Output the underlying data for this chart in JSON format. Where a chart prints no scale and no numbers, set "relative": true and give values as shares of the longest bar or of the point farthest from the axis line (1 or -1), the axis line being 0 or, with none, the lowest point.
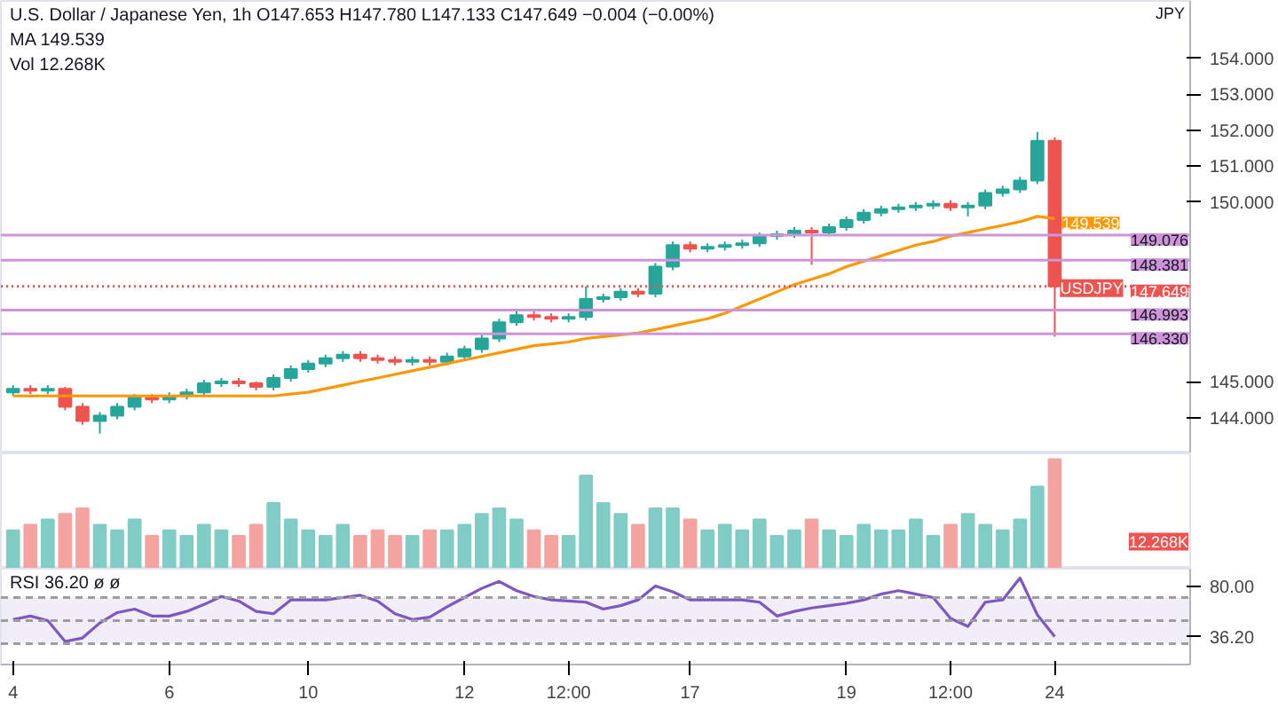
{
  "chart_data": [
    {
      "type": "candlestick",
      "title": "U.S. Dollar / Japanese Yen, 1h  O147.653 H147.780 L147.133 C147.649 −0.004 (−0.00%)",
      "ylabel": "JPY",
      "annotations": [
        "MA 149.539",
        "Vol 12.268K",
        {
          "text": "USDJPY",
          "y": 147.649
        }
      ],
      "categories": [
        null,
        null,
        null,
        null,
        null,
        null,
        null,
        null,
        null,
        null,
        null,
        null,
        null,
        null,
        null,
        null,
        null,
        null,
        null,
        null,
        null,
        null,
        null,
        null,
        null,
        null,
        null,
        null,
        null,
        null,
        null,
        null,
        null,
        null,
        null,
        null,
        null,
        null,
        null,
        null,
        null,
        null,
        null,
        null,
        null,
        null,
        null,
        null,
        null,
        null,
        null,
        null,
        null,
        null,
        null,
        null,
        null,
        null,
        null,
        null,
        null
      ],
      "ohlc": [
        [
          144.7,
          144.9,
          144.6,
          144.8
        ],
        [
          144.8,
          144.9,
          144.65,
          144.75
        ],
        [
          144.75,
          144.9,
          144.65,
          144.8
        ],
        [
          144.8,
          144.85,
          144.2,
          144.3
        ],
        [
          144.3,
          144.4,
          143.8,
          143.9
        ],
        [
          143.9,
          144.15,
          143.55,
          144.05
        ],
        [
          144.05,
          144.4,
          143.95,
          144.3
        ],
        [
          144.3,
          144.65,
          144.2,
          144.55
        ],
        [
          144.55,
          144.65,
          144.4,
          144.5
        ],
        [
          144.5,
          144.7,
          144.4,
          144.6
        ],
        [
          144.6,
          144.8,
          144.5,
          144.7
        ],
        [
          144.7,
          145.05,
          144.6,
          144.95
        ],
        [
          144.95,
          145.1,
          144.85,
          145.0
        ],
        [
          145.0,
          145.1,
          144.85,
          144.95
        ],
        [
          144.95,
          145.0,
          144.75,
          144.85
        ],
        [
          144.85,
          145.2,
          144.75,
          145.1
        ],
        [
          145.1,
          145.45,
          145.0,
          145.35
        ],
        [
          145.35,
          145.6,
          145.25,
          145.5
        ],
        [
          145.5,
          145.75,
          145.4,
          145.65
        ],
        [
          145.65,
          145.85,
          145.55,
          145.75
        ],
        [
          145.75,
          145.85,
          145.55,
          145.65
        ],
        [
          145.65,
          145.75,
          145.5,
          145.6
        ],
        [
          145.6,
          145.7,
          145.45,
          145.55
        ],
        [
          145.55,
          145.7,
          145.45,
          145.6
        ],
        [
          145.6,
          145.7,
          145.45,
          145.55
        ],
        [
          145.55,
          145.8,
          145.45,
          145.7
        ],
        [
          145.7,
          146.0,
          145.6,
          145.9
        ],
        [
          145.9,
          146.3,
          145.8,
          146.2
        ],
        [
          146.2,
          146.75,
          146.1,
          146.65
        ],
        [
          146.65,
          146.95,
          146.55,
          146.85
        ],
        [
          146.85,
          146.95,
          146.7,
          146.8
        ],
        [
          146.8,
          146.9,
          146.65,
          146.75
        ],
        [
          146.75,
          146.9,
          146.65,
          146.8
        ],
        [
          146.8,
          147.65,
          146.7,
          147.3
        ],
        [
          147.3,
          147.45,
          147.2,
          147.35
        ],
        [
          147.35,
          147.6,
          147.25,
          147.5
        ],
        [
          147.5,
          147.6,
          147.35,
          147.45
        ],
        [
          147.45,
          148.3,
          147.35,
          148.2
        ],
        [
          148.2,
          148.9,
          148.1,
          148.8
        ],
        [
          148.8,
          148.9,
          148.6,
          148.7
        ],
        [
          148.7,
          148.85,
          148.6,
          148.75
        ],
        [
          148.75,
          148.9,
          148.65,
          148.8
        ],
        [
          148.8,
          148.95,
          148.7,
          148.85
        ],
        [
          148.85,
          149.15,
          148.75,
          149.05
        ],
        [
          149.05,
          149.2,
          148.95,
          149.1
        ],
        [
          149.1,
          149.3,
          149.0,
          149.2
        ],
        [
          149.2,
          149.3,
          148.25,
          149.15
        ],
        [
          149.15,
          149.4,
          149.05,
          149.3
        ],
        [
          149.3,
          149.6,
          149.2,
          149.5
        ],
        [
          149.5,
          149.8,
          149.4,
          149.7
        ],
        [
          149.7,
          149.9,
          149.6,
          149.8
        ],
        [
          149.8,
          149.95,
          149.7,
          149.85
        ],
        [
          149.85,
          150.0,
          149.75,
          149.9
        ],
        [
          149.9,
          150.05,
          149.8,
          149.95
        ],
        [
          149.95,
          150.05,
          149.75,
          149.85
        ],
        [
          149.85,
          150.0,
          149.6,
          149.9
        ],
        [
          149.9,
          150.35,
          149.8,
          150.25
        ],
        [
          150.25,
          150.45,
          150.15,
          150.35
        ],
        [
          150.35,
          150.7,
          150.25,
          150.6
        ],
        [
          150.6,
          151.95,
          150.5,
          151.7
        ],
        [
          151.7,
          151.8,
          146.25,
          147.649
        ]
      ],
      "series": [
        {
          "type": "line",
          "color": "#ff9800",
          "values": [
            144.6,
            144.6,
            144.6,
            144.6,
            144.6,
            144.6,
            144.6,
            144.6,
            144.6,
            144.6,
            144.6,
            144.6,
            144.6,
            144.6,
            144.6,
            144.6,
            144.65,
            144.7,
            144.8,
            144.9,
            145.0,
            145.1,
            145.2,
            145.3,
            145.4,
            145.5,
            145.6,
            145.7,
            145.8,
            145.9,
            146.0,
            146.05,
            146.1,
            146.2,
            146.25,
            146.3,
            146.35,
            146.45,
            146.55,
            146.65,
            146.75,
            146.9,
            147.1,
            147.3,
            147.5,
            147.7,
            147.85,
            148.0,
            148.2,
            148.35,
            148.5,
            148.65,
            148.8,
            148.9,
            149.05,
            149.15,
            149.25,
            149.35,
            149.45,
            149.6,
            149.539
          ],
          "value_labels": [
            null,
            null,
            null,
            null,
            null,
            null,
            null,
            null,
            null,
            null,
            null,
            null,
            null,
            null,
            null,
            null,
            null,
            null,
            null,
            null,
            null,
            null,
            null,
            null,
            null,
            null,
            null,
            null,
            null,
            null,
            null,
            null,
            null,
            null,
            null,
            null,
            null,
            null,
            null,
            null,
            null,
            null,
            null,
            null,
            null,
            null,
            null,
            null,
            null,
            null,
            null,
            null,
            null,
            null,
            null,
            null,
            null,
            null,
            null,
            null,
            "149.539"
          ]
        }
      ],
      "ref_lines": [
        {
          "axis": "y",
          "value": 149.076,
          "label": "149.076",
          "color": "#ce93d8"
        },
        {
          "axis": "y",
          "value": 148.381,
          "label": "148.381",
          "color": "#ce93d8"
        },
        {
          "axis": "y",
          "value": 146.993,
          "label": "146.993",
          "color": "#ce93d8"
        },
        {
          "axis": "y",
          "value": 146.33,
          "label": "146.330",
          "color": "#ce93d8"
        },
        {
          "axis": "y",
          "value": 147.649,
          "label": "147.649",
          "color": "#ef5350",
          "line_style": "dotted"
        }
      ],
      "ylim": [
        143.0,
        155.6
      ],
      "yticks": [
        {
          "value": 144,
          "label": "144.000"
        },
        {
          "value": 145,
          "label": "145.000"
        },
        {
          "value": 150,
          "label": "150.000"
        },
        {
          "value": 151,
          "label": "151.000"
        },
        {
          "value": 152,
          "label": "152.000"
        },
        {
          "value": 153,
          "label": "153.000"
        },
        {
          "value": 154,
          "label": "154.000"
        }
      ],
      "tick_labels": "y"
    },
    {
      "type": "bar",
      "relative": true,
      "tick_labels": false,
      "categories": [
        null,
        null,
        null,
        null,
        null,
        null,
        null,
        null,
        null,
        null,
        null,
        null,
        null,
        null,
        null,
        null,
        null,
        null,
        null,
        null,
        null,
        null,
        null,
        null,
        null,
        null,
        null,
        null,
        null,
        null,
        null,
        null,
        null,
        null,
        null,
        null,
        null,
        null,
        null,
        null,
        null,
        null,
        null,
        null,
        null,
        null,
        null,
        null,
        null,
        null,
        null,
        null,
        null,
        null,
        null,
        null,
        null,
        null,
        null,
        null,
        null
      ],
      "values": [
        0.35,
        0.4,
        0.45,
        0.5,
        0.55,
        0.4,
        0.35,
        0.45,
        0.3,
        0.35,
        0.3,
        0.4,
        0.35,
        0.3,
        0.4,
        0.6,
        0.45,
        0.35,
        0.3,
        0.4,
        0.3,
        0.35,
        0.3,
        0.3,
        0.35,
        0.35,
        0.4,
        0.5,
        0.55,
        0.45,
        0.35,
        0.3,
        0.3,
        0.85,
        0.6,
        0.5,
        0.4,
        0.55,
        0.55,
        0.45,
        0.35,
        0.4,
        0.35,
        0.45,
        0.3,
        0.35,
        0.45,
        0.35,
        0.3,
        0.4,
        0.35,
        0.35,
        0.45,
        0.3,
        0.4,
        0.5,
        0.4,
        0.35,
        0.45,
        0.75,
        1.0
      ],
      "colors": [
        "#7fcdc4",
        "#f5a3a1",
        "#7fcdc4",
        "#f5a3a1",
        "#f5a3a1",
        "#7fcdc4",
        "#7fcdc4",
        "#7fcdc4",
        "#f5a3a1",
        "#7fcdc4",
        "#7fcdc4",
        "#7fcdc4",
        "#7fcdc4",
        "#f5a3a1",
        "#f5a3a1",
        "#7fcdc4",
        "#7fcdc4",
        "#7fcdc4",
        "#7fcdc4",
        "#7fcdc4",
        "#f5a3a1",
        "#f5a3a1",
        "#f5a3a1",
        "#7fcdc4",
        "#f5a3a1",
        "#7fcdc4",
        "#7fcdc4",
        "#7fcdc4",
        "#7fcdc4",
        "#7fcdc4",
        "#f5a3a1",
        "#f5a3a1",
        "#7fcdc4",
        "#7fcdc4",
        "#7fcdc4",
        "#7fcdc4",
        "#f5a3a1",
        "#7fcdc4",
        "#7fcdc4",
        "#f5a3a1",
        "#7fcdc4",
        "#7fcdc4",
        "#7fcdc4",
        "#7fcdc4",
        "#7fcdc4",
        "#7fcdc4",
        "#f5a3a1",
        "#7fcdc4",
        "#7fcdc4",
        "#7fcdc4",
        "#7fcdc4",
        "#7fcdc4",
        "#7fcdc4",
        "#7fcdc4",
        "#f5a3a1",
        "#7fcdc4",
        "#7fcdc4",
        "#7fcdc4",
        "#7fcdc4",
        "#7fcdc4",
        "#f5a3a1"
      ],
      "annotations": [
        "12.268K"
      ]
    },
    {
      "type": "line",
      "title": "RSI 36.20 ø ø",
      "color": "#7e57c2",
      "categories": [
        "4",
        null,
        null,
        null,
        null,
        null,
        null,
        null,
        null,
        "6",
        null,
        null,
        null,
        null,
        null,
        null,
        null,
        "10",
        null,
        null,
        null,
        null,
        null,
        null,
        null,
        null,
        "12",
        null,
        null,
        null,
        null,
        null,
        "12:00",
        null,
        null,
        null,
        null,
        null,
        null,
        "17",
        null,
        null,
        null,
        null,
        null,
        null,
        null,
        null,
        "19",
        null,
        null,
        null,
        null,
        null,
        "12:00",
        null,
        null,
        null,
        null,
        null,
        "24"
      ],
      "values": [
        51,
        54,
        50,
        32,
        35,
        48,
        57,
        60,
        54,
        54,
        58,
        64,
        71,
        67,
        58,
        56,
        68,
        68,
        68,
        70,
        72,
        67,
        56,
        51,
        53,
        62,
        70,
        78,
        84,
        76,
        71,
        68,
        67,
        66,
        60,
        63,
        68,
        80,
        75,
        68,
        68,
        68,
        68,
        66,
        54,
        58,
        61,
        63,
        65,
        68,
        73,
        76,
        73,
        70,
        52,
        45,
        66,
        68,
        87,
        55,
        36.2
      ],
      "ref_lines": [
        {
          "axis": "y",
          "value": 70,
          "color": "#9e9e9e",
          "line_style": "dashed"
        },
        {
          "axis": "y",
          "value": 50,
          "color": "#9e9e9e",
          "line_style": "dashed"
        },
        {
          "axis": "y",
          "value": 30,
          "color": "#9e9e9e",
          "line_style": "dashed"
        }
      ],
      "bands": [
        {
          "axis": "y",
          "from": 30,
          "to": 70,
          "color": "#ede7f6"
        }
      ],
      "ylim": [
        12,
        95
      ],
      "yticks": [
        {
          "value": 80,
          "label": "80.00"
        },
        {
          "value": 36.2,
          "label": "36.20"
        }
      ]
    }
  ]
}
